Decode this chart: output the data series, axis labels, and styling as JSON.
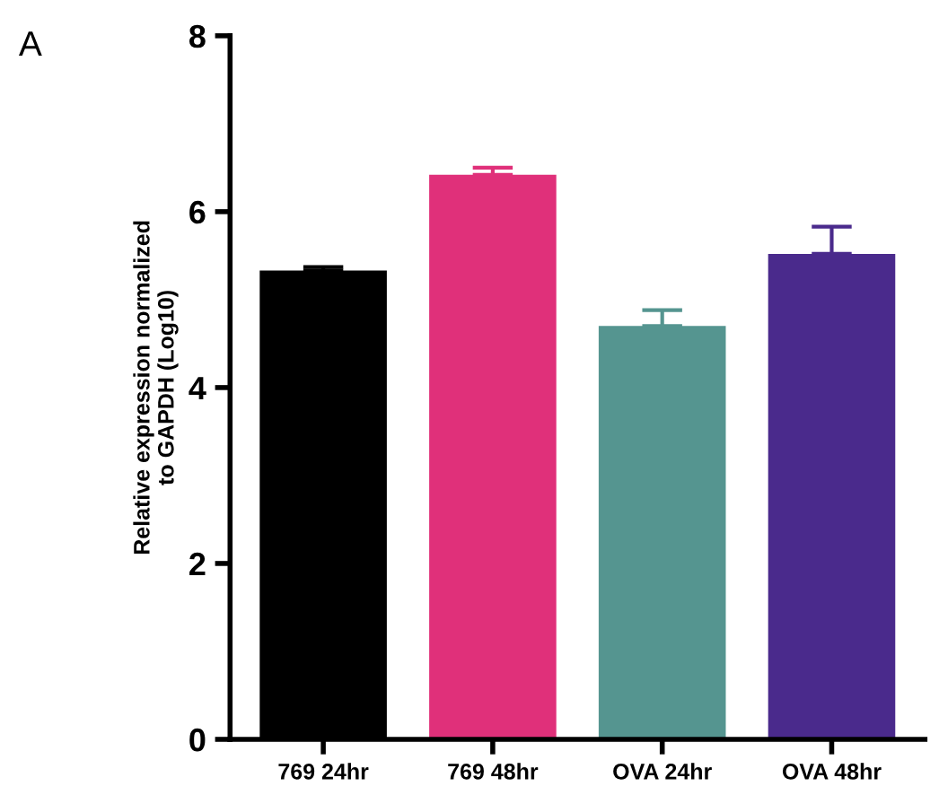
{
  "chart_data": {
    "type": "bar",
    "ylabel": "Relative expression normalized\nto GAPDH (Log10)",
    "categories": [
      "769 24hr",
      "769 48hr",
      "OVA 24hr",
      "OVA 48hr"
    ],
    "values": [
      5.33,
      6.42,
      4.7,
      5.52
    ],
    "errors": [
      [
        5.33,
        5.37
      ],
      [
        6.42,
        6.5
      ],
      [
        4.7,
        4.88
      ],
      [
        5.52,
        5.83
      ]
    ],
    "colors": [
      "#000000",
      "#e0307a",
      "#559590",
      "#4a2a8c"
    ],
    "ylim": [
      0,
      8
    ],
    "yticks": [
      0,
      2,
      4,
      6,
      8
    ],
    "annotations": [
      "A"
    ]
  }
}
